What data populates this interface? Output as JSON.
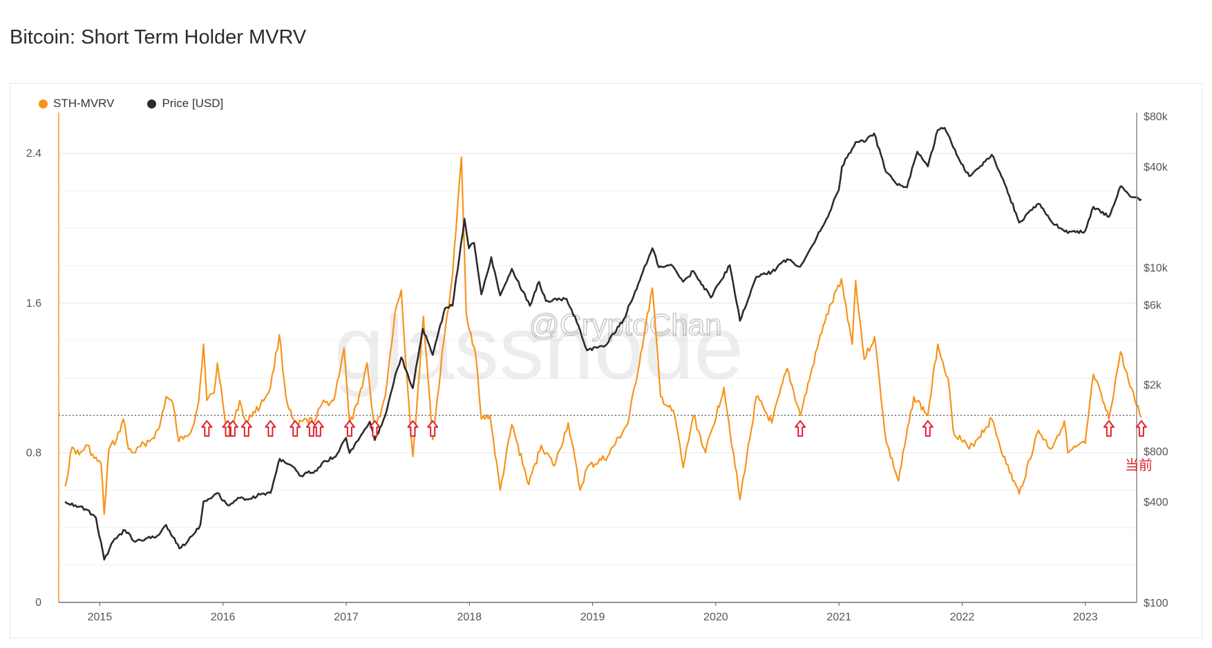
{
  "page": {
    "title": "Bitcoin: Short Term Holder MVRV"
  },
  "watermark": {
    "brand": "glassnode",
    "handle": "@CryptoChan"
  },
  "annotation": {
    "current_label": "当前"
  },
  "chart_data": {
    "type": "line",
    "title": "Bitcoin: Short Term Holder MVRV",
    "legend": [
      {
        "name": "STH-MVRV",
        "color": "#f7931a"
      },
      {
        "name": "Price [USD]",
        "color": "#2b2b2b"
      }
    ],
    "legend_position": "top-left",
    "x_axis": {
      "type": "time",
      "range": [
        "2014-09",
        "2023-06"
      ],
      "tick_labels": [
        "2015",
        "2016",
        "2017",
        "2018",
        "2019",
        "2020",
        "2021",
        "2022",
        "2023"
      ]
    },
    "y_left": {
      "range": [
        0,
        2.6
      ],
      "tick_values": [
        0,
        0.8,
        1.6,
        2.4
      ],
      "tick_labels": [
        "0",
        "0.8",
        "1.6",
        "2.4"
      ]
    },
    "y_right": {
      "scale": "log",
      "range": [
        100,
        80000
      ],
      "tick_values": [
        100,
        400,
        800,
        2000,
        6000,
        10000,
        40000,
        80000
      ],
      "tick_labels": [
        "$100",
        "$400",
        "$800",
        "$2k",
        "$6k",
        "$10k",
        "$40k",
        "$80k"
      ]
    },
    "reference_line": {
      "y": 1.0,
      "style": "dotted"
    },
    "grid": true,
    "series": [
      {
        "name": "STH-MVRV",
        "axis": "left",
        "color": "#f7931a",
        "points": [
          [
            "2014-09-20",
            0.62
          ],
          [
            "2014-10-10",
            0.83
          ],
          [
            "2014-11-01",
            0.79
          ],
          [
            "2014-11-25",
            0.84
          ],
          [
            "2014-12-15",
            0.77
          ],
          [
            "2015-01-05",
            0.74
          ],
          [
            "2015-01-14",
            0.47
          ],
          [
            "2015-01-28",
            0.82
          ],
          [
            "2015-02-20",
            0.87
          ],
          [
            "2015-03-10",
            0.98
          ],
          [
            "2015-03-25",
            0.82
          ],
          [
            "2015-04-15",
            0.8
          ],
          [
            "2015-05-10",
            0.85
          ],
          [
            "2015-06-01",
            0.87
          ],
          [
            "2015-06-25",
            0.93
          ],
          [
            "2015-07-15",
            1.1
          ],
          [
            "2015-08-05",
            1.06
          ],
          [
            "2015-08-22",
            0.86
          ],
          [
            "2015-09-10",
            0.89
          ],
          [
            "2015-10-01",
            0.93
          ],
          [
            "2015-10-20",
            1.07
          ],
          [
            "2015-11-04",
            1.38
          ],
          [
            "2015-11-14",
            1.08
          ],
          [
            "2015-12-05",
            1.12
          ],
          [
            "2015-12-15",
            1.28
          ],
          [
            "2015-12-31",
            1.07
          ],
          [
            "2016-01-15",
            0.9
          ],
          [
            "2016-01-30",
            0.94
          ],
          [
            "2016-02-20",
            1.08
          ],
          [
            "2016-03-10",
            0.95
          ],
          [
            "2016-03-30",
            1.02
          ],
          [
            "2016-04-20",
            1.05
          ],
          [
            "2016-05-20",
            1.15
          ],
          [
            "2016-06-16",
            1.43
          ],
          [
            "2016-07-05",
            1.1
          ],
          [
            "2016-08-02",
            0.93
          ],
          [
            "2016-08-25",
            0.97
          ],
          [
            "2016-09-30",
            0.97
          ],
          [
            "2016-10-20",
            1.06
          ],
          [
            "2016-11-25",
            1.08
          ],
          [
            "2016-12-25",
            1.36
          ],
          [
            "2017-01-11",
            0.95
          ],
          [
            "2017-02-05",
            1.06
          ],
          [
            "2017-03-02",
            1.28
          ],
          [
            "2017-03-25",
            0.91
          ],
          [
            "2017-04-25",
            1.1
          ],
          [
            "2017-05-24",
            1.55
          ],
          [
            "2017-06-12",
            1.67
          ],
          [
            "2017-06-30",
            1.17
          ],
          [
            "2017-07-16",
            0.78
          ],
          [
            "2017-08-05",
            1.23
          ],
          [
            "2017-08-17",
            1.53
          ],
          [
            "2017-09-14",
            0.87
          ],
          [
            "2017-10-20",
            1.45
          ],
          [
            "2017-11-12",
            1.75
          ],
          [
            "2017-12-08",
            2.38
          ],
          [
            "2017-12-22",
            1.55
          ],
          [
            "2018-01-20",
            1.32
          ],
          [
            "2018-02-06",
            0.98
          ],
          [
            "2018-03-01",
            1.0
          ],
          [
            "2018-04-01",
            0.6
          ],
          [
            "2018-05-05",
            0.95
          ],
          [
            "2018-06-25",
            0.63
          ],
          [
            "2018-08-01",
            0.84
          ],
          [
            "2018-09-10",
            0.73
          ],
          [
            "2018-10-20",
            0.96
          ],
          [
            "2018-11-25",
            0.6
          ],
          [
            "2018-12-15",
            0.72
          ],
          [
            "2019-02-15",
            0.78
          ],
          [
            "2019-04-15",
            0.96
          ],
          [
            "2019-06-01",
            1.42
          ],
          [
            "2019-06-26",
            1.68
          ],
          [
            "2019-07-20",
            1.1
          ],
          [
            "2019-09-01",
            1.0
          ],
          [
            "2019-09-26",
            0.72
          ],
          [
            "2019-10-26",
            1.0
          ],
          [
            "2019-12-01",
            0.8
          ],
          [
            "2020-01-25",
            1.15
          ],
          [
            "2020-03-12",
            0.55
          ],
          [
            "2020-04-30",
            1.1
          ],
          [
            "2020-06-15",
            0.96
          ],
          [
            "2020-07-30",
            1.25
          ],
          [
            "2020-09-08",
            1.0
          ],
          [
            "2020-11-15",
            1.48
          ],
          [
            "2021-01-08",
            1.73
          ],
          [
            "2021-02-10",
            1.38
          ],
          [
            "2021-02-20",
            1.72
          ],
          [
            "2021-03-15",
            1.3
          ],
          [
            "2021-04-15",
            1.42
          ],
          [
            "2021-05-19",
            0.86
          ],
          [
            "2021-06-25",
            0.65
          ],
          [
            "2021-08-10",
            1.1
          ],
          [
            "2021-09-21",
            1.0
          ],
          [
            "2021-10-20",
            1.38
          ],
          [
            "2021-11-20",
            1.2
          ],
          [
            "2021-12-05",
            0.92
          ],
          [
            "2022-01-22",
            0.82
          ],
          [
            "2022-03-28",
            0.98
          ],
          [
            "2022-05-10",
            0.74
          ],
          [
            "2022-06-18",
            0.58
          ],
          [
            "2022-08-14",
            0.92
          ],
          [
            "2022-09-20",
            0.82
          ],
          [
            "2022-10-30",
            0.97
          ],
          [
            "2022-11-10",
            0.8
          ],
          [
            "2022-12-31",
            0.85
          ],
          [
            "2023-01-25",
            1.22
          ],
          [
            "2023-03-10",
            0.98
          ],
          [
            "2023-04-14",
            1.34
          ],
          [
            "2023-05-12",
            1.15
          ],
          [
            "2023-06-15",
            0.99
          ]
        ]
      },
      {
        "name": "Price [USD]",
        "axis": "right",
        "color": "#2b2b2b",
        "points": [
          [
            "2014-09-20",
            400
          ],
          [
            "2014-10-20",
            380
          ],
          [
            "2014-11-20",
            360
          ],
          [
            "2014-12-20",
            320
          ],
          [
            "2015-01-14",
            180
          ],
          [
            "2015-02-15",
            240
          ],
          [
            "2015-03-15",
            270
          ],
          [
            "2015-04-15",
            230
          ],
          [
            "2015-05-15",
            240
          ],
          [
            "2015-06-15",
            245
          ],
          [
            "2015-07-15",
            290
          ],
          [
            "2015-08-24",
            210
          ],
          [
            "2015-09-20",
            235
          ],
          [
            "2015-10-25",
            290
          ],
          [
            "2015-11-04",
            400
          ],
          [
            "2015-12-15",
            450
          ],
          [
            "2016-01-15",
            380
          ],
          [
            "2016-02-20",
            420
          ],
          [
            "2016-03-20",
            415
          ],
          [
            "2016-04-20",
            440
          ],
          [
            "2016-05-20",
            450
          ],
          [
            "2016-06-17",
            720
          ],
          [
            "2016-07-20",
            660
          ],
          [
            "2016-08-15",
            570
          ],
          [
            "2016-09-30",
            610
          ],
          [
            "2016-10-31",
            700
          ],
          [
            "2016-11-30",
            740
          ],
          [
            "2016-12-31",
            960
          ],
          [
            "2017-01-11",
            780
          ],
          [
            "2017-02-15",
            1000
          ],
          [
            "2017-03-10",
            1200
          ],
          [
            "2017-03-25",
            930
          ],
          [
            "2017-04-25",
            1300
          ],
          [
            "2017-05-25",
            2300
          ],
          [
            "2017-06-12",
            2900
          ],
          [
            "2017-07-16",
            1900
          ],
          [
            "2017-08-15",
            4300
          ],
          [
            "2017-09-14",
            3000
          ],
          [
            "2017-10-20",
            5700
          ],
          [
            "2017-11-12",
            5900
          ],
          [
            "2017-12-17",
            19500
          ],
          [
            "2017-12-30",
            13000
          ],
          [
            "2018-01-15",
            14000
          ],
          [
            "2018-02-06",
            6900
          ],
          [
            "2018-03-05",
            11500
          ],
          [
            "2018-04-01",
            6800
          ],
          [
            "2018-05-05",
            9800
          ],
          [
            "2018-06-28",
            5900
          ],
          [
            "2018-07-25",
            8200
          ],
          [
            "2018-08-15",
            6300
          ],
          [
            "2018-10-15",
            6500
          ],
          [
            "2018-11-20",
            4500
          ],
          [
            "2018-12-15",
            3200
          ],
          [
            "2019-02-08",
            3400
          ],
          [
            "2019-04-02",
            4900
          ],
          [
            "2019-05-15",
            8000
          ],
          [
            "2019-06-26",
            13000
          ],
          [
            "2019-07-15",
            10000
          ],
          [
            "2019-08-25",
            10200
          ],
          [
            "2019-09-26",
            8200
          ],
          [
            "2019-10-26",
            9500
          ],
          [
            "2019-12-17",
            6600
          ],
          [
            "2020-02-12",
            10300
          ],
          [
            "2020-03-12",
            4800
          ],
          [
            "2020-04-30",
            8800
          ],
          [
            "2020-06-15",
            9400
          ],
          [
            "2020-07-30",
            11200
          ],
          [
            "2020-09-08",
            10100
          ],
          [
            "2020-11-20",
            18500
          ],
          [
            "2020-12-31",
            29000
          ],
          [
            "2021-01-10",
            40000
          ],
          [
            "2021-02-20",
            56000
          ],
          [
            "2021-03-15",
            56000
          ],
          [
            "2021-04-14",
            63000
          ],
          [
            "2021-05-19",
            37000
          ],
          [
            "2021-06-22",
            31000
          ],
          [
            "2021-07-20",
            30000
          ],
          [
            "2021-08-20",
            49000
          ],
          [
            "2021-09-21",
            40000
          ],
          [
            "2021-10-20",
            66000
          ],
          [
            "2021-11-10",
            68000
          ],
          [
            "2021-12-15",
            47000
          ],
          [
            "2022-01-22",
            35000
          ],
          [
            "2022-03-28",
            47000
          ],
          [
            "2022-05-10",
            30000
          ],
          [
            "2022-06-18",
            18500
          ],
          [
            "2022-08-14",
            24000
          ],
          [
            "2022-09-20",
            19000
          ],
          [
            "2022-11-10",
            16000
          ],
          [
            "2022-12-31",
            16500
          ],
          [
            "2023-01-25",
            23000
          ],
          [
            "2023-03-10",
            20000
          ],
          [
            "2023-04-14",
            30500
          ],
          [
            "2023-05-12",
            26500
          ],
          [
            "2023-06-15",
            25500
          ]
        ]
      }
    ],
    "marked_dips": [
      "2015-11-14",
      "2016-01-15",
      "2016-01-30",
      "2016-03-10",
      "2016-05-20",
      "2016-08-02",
      "2016-09-20",
      "2016-10-10",
      "2017-01-11",
      "2017-03-25",
      "2017-07-16",
      "2017-09-14",
      "2020-09-08",
      "2021-09-21",
      "2023-03-10",
      "2023-06-15"
    ]
  }
}
